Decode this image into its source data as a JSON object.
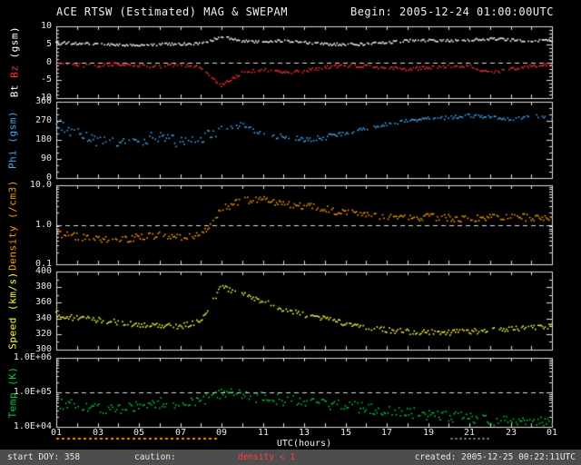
{
  "header": {
    "title": "ACE RTSW (Estimated) MAG & SWEPAM",
    "begin": "Begin: 2005-12-24 01:00:00UTC"
  },
  "footer": {
    "start_doy": "start DOY: 358",
    "caution_label": "caution:",
    "caution_value": "density < 1",
    "created": "created: 2005-12-25 00:22:11UTC"
  },
  "colors": {
    "background": "#000000",
    "axis": "#e0e0e0",
    "bt": "#ffffff",
    "bz": "#ff3030",
    "phi": "#3fa9f5",
    "density": "#ff9a00",
    "speed": "#ffff40",
    "temp": "#00c846",
    "caution": "#ff8800",
    "caution_minor": "#999999",
    "footer_bg": "#4d4d4d",
    "footer_text": "#e8e8e8",
    "footer_caution_value": "#ff4040"
  },
  "x_axis": {
    "label": "UTC(hours)",
    "range_hours": [
      1,
      25
    ],
    "tick_hours": [
      1,
      3,
      5,
      7,
      9,
      11,
      13,
      15,
      17,
      19,
      21,
      23,
      25
    ],
    "tick_labels": [
      "01",
      "03",
      "05",
      "07",
      "09",
      "11",
      "13",
      "15",
      "17",
      "19",
      "21",
      "23",
      "01"
    ],
    "minor_tick_every_hours": 1
  },
  "caution": {
    "x_hours": [
      1,
      8.7
    ],
    "minor_marks_hours": [
      20.1,
      21.9
    ]
  },
  "chart_data": {
    "type": "scatter",
    "x_unit": "UTC hours (starting 2005-12-24 01:00)",
    "sampling_note": "values estimated from plot at 1-hour resolution",
    "x_hours": [
      1,
      2,
      3,
      4,
      5,
      6,
      7,
      8,
      9,
      10,
      11,
      12,
      13,
      14,
      15,
      16,
      17,
      18,
      19,
      20,
      21,
      22,
      23,
      24,
      25
    ],
    "panels": [
      {
        "name": "magnetic-field",
        "ylabel_parts": {
          "bt": "Bt",
          "bz": "Bz",
          "unit": "(gsm)"
        },
        "scale": "linear",
        "ylim": [
          -10,
          10
        ],
        "y_minor_step": 1,
        "yticks": {
          "values": [
            -10,
            -5,
            0,
            5,
            10
          ],
          "labels": [
            "-10",
            "-5",
            "0",
            "5",
            "10"
          ]
        },
        "dashed_line_y": 0,
        "series": [
          {
            "name": "Bt",
            "color_key": "bt",
            "values": [
              5.5,
              5.2,
              5.0,
              4.8,
              4.6,
              5.0,
              5.0,
              5.2,
              7.0,
              6.0,
              5.5,
              6.0,
              5.5,
              5.0,
              5.0,
              5.0,
              5.5,
              6.0,
              6.0,
              6.0,
              6.2,
              6.5,
              6.2,
              6.0,
              6.0
            ]
          },
          {
            "name": "Bz",
            "color_key": "bz",
            "values": [
              -0.5,
              -0.8,
              -1.0,
              -0.5,
              -1.0,
              -1.2,
              -0.8,
              -1.5,
              -6.5,
              -3.0,
              -2.0,
              -3.0,
              -2.5,
              -1.5,
              -1.0,
              -1.2,
              -1.5,
              -2.0,
              -1.5,
              -1.2,
              -1.0,
              -3.0,
              -2.0,
              -1.0,
              -0.8
            ]
          }
        ]
      },
      {
        "name": "phi-angle",
        "ylabel": "Phi (gsm)",
        "scale": "linear",
        "ylim": [
          0,
          360
        ],
        "y_minor_step": 30,
        "yticks": {
          "values": [
            0,
            90,
            180,
            270,
            360
          ],
          "labels": [
            "0",
            "90",
            "180",
            "270",
            "360"
          ]
        },
        "dashed_line_y": null,
        "series": [
          {
            "name": "Phi",
            "color_key": "phi",
            "values": [
              260,
              210,
              170,
              160,
              175,
              200,
              170,
              185,
              230,
              250,
              200,
              195,
              185,
              190,
              210,
              235,
              255,
              270,
              280,
              285,
              295,
              285,
              275,
              295,
              285
            ]
          }
        ]
      },
      {
        "name": "density",
        "ylabel": "Density (/cm3)",
        "scale": "log",
        "ylim": [
          0.1,
          10
        ],
        "yticks": {
          "values": [
            0.1,
            1,
            10
          ],
          "labels": [
            "0.1",
            "1.0",
            "10.0"
          ]
        },
        "dashed_line_y": 1,
        "series": [
          {
            "name": "Density",
            "color_key": "density",
            "values": [
              0.6,
              0.5,
              0.45,
              0.4,
              0.5,
              0.55,
              0.5,
              0.55,
              2.5,
              4.0,
              4.5,
              3.5,
              3.0,
              2.5,
              2.0,
              1.8,
              1.6,
              1.5,
              1.6,
              1.5,
              1.4,
              1.5,
              1.6,
              1.5,
              1.5
            ]
          }
        ]
      },
      {
        "name": "speed",
        "ylabel": "Speed (km/s)",
        "scale": "linear",
        "ylim": [
          300,
          400
        ],
        "y_minor_step": 10,
        "yticks": {
          "values": [
            300,
            320,
            340,
            360,
            380,
            400
          ],
          "labels": [
            "300",
            "320",
            "340",
            "360",
            "380",
            "400"
          ]
        },
        "dashed_line_y": null,
        "series": [
          {
            "name": "Speed",
            "color_key": "speed",
            "values": [
              345,
              340,
              338,
              335,
              332,
              330,
              330,
              336,
              380,
              372,
              362,
              352,
              345,
              340,
              333,
              328,
              325,
              323,
              322,
              322,
              323,
              325,
              327,
              328,
              330
            ]
          }
        ]
      },
      {
        "name": "temperature",
        "ylabel": "Temp (K)",
        "scale": "log",
        "ylim": [
          10000,
          1000000
        ],
        "yticks": {
          "values": [
            10000,
            100000,
            1000000
          ],
          "labels": [
            "1.0E+04",
            "1.0E+05",
            "1.0E+06"
          ]
        },
        "dashed_line_y": 100000,
        "series": [
          {
            "name": "Temp",
            "color_key": "temp",
            "values": [
              50000,
              40000,
              35000,
              30000,
              40000,
              50000,
              45000,
              55000,
              100000,
              80000,
              70000,
              60000,
              50000,
              45000,
              40000,
              35000,
              30000,
              26000,
              22000,
              20000,
              18000,
              16000,
              15000,
              14000,
              13000
            ]
          }
        ]
      }
    ]
  }
}
